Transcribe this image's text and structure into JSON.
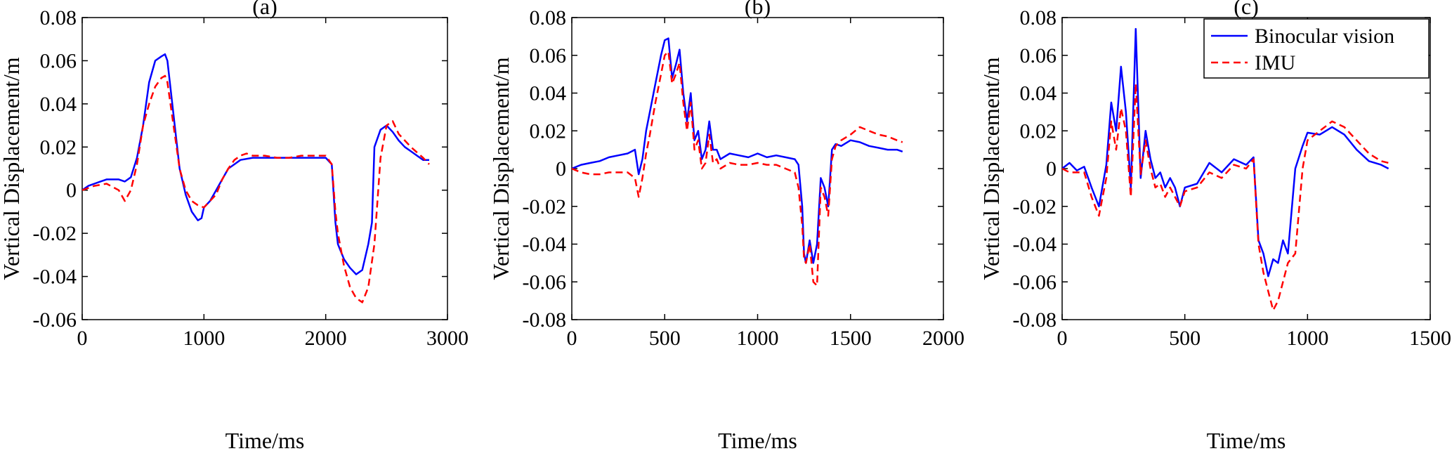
{
  "colors": {
    "binocular": "#0000ff",
    "imu": "#ff0000",
    "axis": "#000000"
  },
  "legend": {
    "placement": "top-right",
    "panel": 2,
    "items": [
      "Binocular vision",
      "IMU"
    ]
  },
  "chart_data": [
    {
      "type": "line",
      "title": "(a)",
      "xlabel": "Time/ms",
      "ylabel": "Vertical Displacement/m",
      "xlim": [
        0,
        3000
      ],
      "ylim": [
        -0.06,
        0.08
      ],
      "xticks": [
        "0",
        "1000",
        "2000",
        "3000"
      ],
      "yticks": [
        "-0.06",
        "-0.04",
        "-0.02",
        "0",
        "0.02",
        "0.04",
        "0.06",
        "0.08"
      ],
      "series": [
        {
          "name": "Binocular vision",
          "style": "solid",
          "x": [
            0,
            50,
            100,
            150,
            200,
            250,
            300,
            350,
            400,
            450,
            500,
            550,
            600,
            650,
            680,
            700,
            750,
            800,
            850,
            900,
            950,
            980,
            1000,
            1050,
            1100,
            1150,
            1200,
            1250,
            1300,
            1400,
            1500,
            1600,
            1700,
            1800,
            1900,
            2000,
            2050,
            2080,
            2100,
            2150,
            2200,
            2250,
            2300,
            2350,
            2380,
            2400,
            2450,
            2500,
            2550,
            2600,
            2650,
            2700,
            2750,
            2800,
            2850
          ],
          "y": [
            0,
            0.002,
            0.003,
            0.004,
            0.005,
            0.005,
            0.005,
            0.004,
            0.006,
            0.015,
            0.03,
            0.05,
            0.06,
            0.062,
            0.063,
            0.06,
            0.035,
            0.01,
            -0.002,
            -0.01,
            -0.014,
            -0.013,
            -0.008,
            -0.005,
            0,
            0.005,
            0.01,
            0.012,
            0.014,
            0.015,
            0.015,
            0.015,
            0.015,
            0.015,
            0.015,
            0.015,
            0.012,
            -0.015,
            -0.025,
            -0.032,
            -0.036,
            -0.039,
            -0.037,
            -0.025,
            -0.015,
            0.02,
            0.028,
            0.03,
            0.027,
            0.023,
            0.02,
            0.018,
            0.016,
            0.014,
            0.014
          ]
        },
        {
          "name": "IMU",
          "style": "dashed",
          "x": [
            0,
            100,
            200,
            300,
            350,
            400,
            450,
            500,
            550,
            600,
            650,
            680,
            700,
            750,
            800,
            850,
            900,
            950,
            1000,
            1050,
            1100,
            1150,
            1200,
            1250,
            1300,
            1350,
            1400,
            1500,
            1600,
            1700,
            1800,
            1900,
            2000,
            2050,
            2080,
            2100,
            2150,
            2200,
            2250,
            2300,
            2350,
            2400,
            2450,
            2500,
            2550,
            2600,
            2700,
            2800,
            2850
          ],
          "y": [
            0,
            0.002,
            0.003,
            0.0,
            -0.005,
            0.0,
            0.012,
            0.03,
            0.04,
            0.048,
            0.052,
            0.053,
            0.05,
            0.03,
            0.01,
            0.0,
            -0.005,
            -0.007,
            -0.008,
            -0.005,
            -0.002,
            0.005,
            0.01,
            0.014,
            0.016,
            0.017,
            0.016,
            0.016,
            0.015,
            0.015,
            0.016,
            0.016,
            0.016,
            0.012,
            -0.01,
            -0.02,
            -0.035,
            -0.045,
            -0.05,
            -0.052,
            -0.045,
            -0.025,
            0.015,
            0.03,
            0.032,
            0.026,
            0.02,
            0.015,
            0.012
          ]
        }
      ]
    },
    {
      "type": "line",
      "title": "(b)",
      "xlabel": "Time/ms",
      "ylabel": "Vertical Displacement/m",
      "xlim": [
        0,
        2000
      ],
      "ylim": [
        -0.08,
        0.08
      ],
      "xticks": [
        "0",
        "500",
        "1000",
        "1500",
        "2000"
      ],
      "yticks": [
        "-0.08",
        "-0.06",
        "-0.04",
        "-0.02",
        "0",
        "0.02",
        "0.04",
        "0.06",
        "0.08"
      ],
      "series": [
        {
          "name": "Binocular vision",
          "style": "solid",
          "x": [
            0,
            50,
            100,
            150,
            200,
            250,
            300,
            340,
            360,
            380,
            400,
            420,
            450,
            480,
            500,
            520,
            540,
            560,
            580,
            600,
            620,
            640,
            660,
            680,
            700,
            720,
            740,
            760,
            780,
            800,
            850,
            900,
            950,
            1000,
            1050,
            1100,
            1150,
            1200,
            1220,
            1240,
            1250,
            1260,
            1280,
            1300,
            1320,
            1340,
            1360,
            1380,
            1400,
            1420,
            1450,
            1500,
            1550,
            1600,
            1650,
            1700,
            1750,
            1780
          ],
          "y": [
            0,
            0.002,
            0.003,
            0.004,
            0.006,
            0.007,
            0.008,
            0.01,
            -0.003,
            0.005,
            0.02,
            0.03,
            0.045,
            0.06,
            0.068,
            0.069,
            0.048,
            0.055,
            0.063,
            0.04,
            0.025,
            0.04,
            0.015,
            0.02,
            0.005,
            0.01,
            0.025,
            0.01,
            0.01,
            0.005,
            0.008,
            0.007,
            0.006,
            0.008,
            0.006,
            0.007,
            0.006,
            0.005,
            0.002,
            -0.02,
            -0.045,
            -0.05,
            -0.038,
            -0.05,
            -0.04,
            -0.005,
            -0.01,
            -0.02,
            0.01,
            0.013,
            0.012,
            0.015,
            0.014,
            0.012,
            0.011,
            0.01,
            0.01,
            0.009
          ]
        },
        {
          "name": "IMU",
          "style": "dashed",
          "x": [
            0,
            50,
            100,
            150,
            200,
            250,
            300,
            340,
            360,
            380,
            400,
            420,
            450,
            480,
            500,
            520,
            540,
            560,
            580,
            600,
            620,
            640,
            660,
            680,
            700,
            720,
            740,
            760,
            780,
            800,
            850,
            900,
            950,
            1000,
            1050,
            1100,
            1150,
            1200,
            1220,
            1240,
            1250,
            1260,
            1280,
            1300,
            1320,
            1340,
            1360,
            1380,
            1400,
            1420,
            1450,
            1500,
            1550,
            1600,
            1650,
            1700,
            1750,
            1780
          ],
          "y": [
            0,
            -0.002,
            -0.003,
            -0.003,
            -0.002,
            -0.002,
            -0.002,
            -0.005,
            -0.015,
            -0.005,
            0.008,
            0.018,
            0.035,
            0.05,
            0.06,
            0.062,
            0.045,
            0.05,
            0.056,
            0.035,
            0.02,
            0.035,
            0.01,
            0.015,
            0.0,
            0.003,
            0.018,
            0.003,
            0.005,
            0.0,
            0.003,
            0.002,
            0.002,
            0.003,
            0.002,
            0.002,
            0.0,
            -0.002,
            -0.01,
            -0.03,
            -0.048,
            -0.05,
            -0.04,
            -0.06,
            -0.062,
            -0.01,
            -0.015,
            -0.025,
            0.005,
            0.012,
            0.015,
            0.018,
            0.022,
            0.02,
            0.018,
            0.017,
            0.015,
            0.014
          ]
        }
      ]
    },
    {
      "type": "line",
      "title": "(c)",
      "xlabel": "Time/ms",
      "ylabel": "Vertical Displacement/m",
      "xlim": [
        0,
        1500
      ],
      "ylim": [
        -0.08,
        0.08
      ],
      "xticks": [
        "0",
        "500",
        "1000",
        "1500"
      ],
      "yticks": [
        "-0.08",
        "-0.06",
        "-0.04",
        "-0.02",
        "0",
        "0.02",
        "0.04",
        "0.06",
        "0.08"
      ],
      "series": [
        {
          "name": "Binocular vision",
          "style": "solid",
          "x": [
            0,
            30,
            60,
            90,
            120,
            150,
            180,
            200,
            220,
            240,
            260,
            280,
            300,
            320,
            340,
            360,
            380,
            400,
            420,
            440,
            460,
            480,
            500,
            550,
            600,
            650,
            700,
            750,
            780,
            800,
            820,
            840,
            860,
            880,
            900,
            920,
            950,
            980,
            1000,
            1050,
            1100,
            1150,
            1200,
            1250,
            1300,
            1330
          ],
          "y": [
            0,
            0.003,
            -0.001,
            0.001,
            -0.01,
            -0.02,
            0.002,
            0.035,
            0.02,
            0.054,
            0.03,
            -0.01,
            0.074,
            -0.005,
            0.02,
            0.005,
            -0.005,
            -0.002,
            -0.01,
            -0.005,
            -0.01,
            -0.02,
            -0.01,
            -0.008,
            0.003,
            -0.002,
            0.005,
            0.002,
            0.006,
            -0.038,
            -0.045,
            -0.057,
            -0.048,
            -0.05,
            -0.038,
            -0.045,
            0.0,
            0.012,
            0.019,
            0.018,
            0.022,
            0.018,
            0.01,
            0.004,
            0.002,
            0.0
          ]
        },
        {
          "name": "IMU",
          "style": "dashed",
          "x": [
            0,
            30,
            60,
            90,
            120,
            150,
            180,
            200,
            220,
            240,
            260,
            280,
            300,
            320,
            340,
            360,
            380,
            400,
            420,
            440,
            460,
            480,
            500,
            550,
            600,
            650,
            700,
            750,
            780,
            800,
            820,
            840,
            860,
            880,
            900,
            920,
            950,
            980,
            1000,
            1050,
            1100,
            1150,
            1200,
            1250,
            1300,
            1330
          ],
          "y": [
            0,
            -0.002,
            -0.002,
            -0.002,
            -0.015,
            -0.025,
            -0.005,
            0.025,
            0.01,
            0.032,
            0.02,
            -0.015,
            0.045,
            -0.003,
            0.015,
            0.0,
            -0.01,
            -0.008,
            -0.015,
            -0.01,
            -0.015,
            -0.02,
            -0.012,
            -0.01,
            -0.002,
            -0.005,
            0.002,
            0.0,
            0.005,
            -0.04,
            -0.055,
            -0.065,
            -0.075,
            -0.07,
            -0.06,
            -0.05,
            -0.045,
            0.0,
            0.015,
            0.02,
            0.025,
            0.022,
            0.015,
            0.008,
            0.004,
            0.003
          ]
        }
      ]
    }
  ]
}
